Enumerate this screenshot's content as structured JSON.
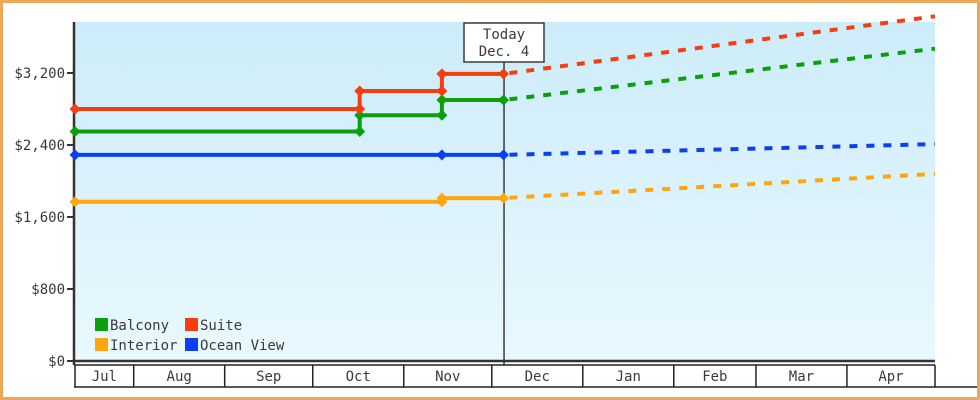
{
  "chart_data": {
    "type": "line",
    "title": "",
    "currency": "USD",
    "y_axis": {
      "ticks": [
        {
          "value": 0,
          "label": "$0"
        },
        {
          "value": 800,
          "label": "$800"
        },
        {
          "value": 1600,
          "label": "$1,600"
        },
        {
          "value": 2400,
          "label": "$2,400"
        },
        {
          "value": 3200,
          "label": "$3,200"
        }
      ],
      "ylim": [
        0,
        3780
      ]
    },
    "x_axis": {
      "months": [
        {
          "label": "Jul",
          "days": 20
        },
        {
          "label": "Aug",
          "days": 31
        },
        {
          "label": "Sep",
          "days": 30
        },
        {
          "label": "Oct",
          "days": 31
        },
        {
          "label": "Nov",
          "days": 30
        },
        {
          "label": "Dec",
          "days": 31
        },
        {
          "label": "Jan",
          "days": 31
        },
        {
          "label": "Feb",
          "days": 28
        },
        {
          "label": "Mar",
          "days": 31
        },
        {
          "label": "Apr",
          "days": 30
        }
      ],
      "timeline_days": 293
    },
    "today": {
      "t": 146,
      "line1": "Today",
      "line2": "Dec. 4"
    },
    "series": [
      {
        "name": "Balcony",
        "color": "#0aa00a",
        "solid": [
          [
            0,
            2550
          ],
          [
            97,
            2550
          ],
          [
            97,
            2730
          ],
          [
            125,
            2730
          ],
          [
            125,
            2900
          ],
          [
            146,
            2900
          ]
        ],
        "projected": [
          [
            146,
            2900
          ],
          [
            293,
            3470
          ]
        ]
      },
      {
        "name": "Suite",
        "color": "#f53d0e",
        "solid": [
          [
            0,
            2800
          ],
          [
            97,
            2800
          ],
          [
            97,
            3000
          ],
          [
            125,
            3000
          ],
          [
            125,
            3190
          ],
          [
            146,
            3190
          ]
        ],
        "projected": [
          [
            146,
            3190
          ],
          [
            293,
            3830
          ]
        ]
      },
      {
        "name": "Interior",
        "color": "#ffa60d",
        "solid": [
          [
            0,
            1770
          ],
          [
            125,
            1770
          ],
          [
            125,
            1810
          ],
          [
            146,
            1810
          ]
        ],
        "projected": [
          [
            146,
            1810
          ],
          [
            293,
            2080
          ]
        ]
      },
      {
        "name": "Ocean View",
        "color": "#0b40f0",
        "solid": [
          [
            0,
            2290
          ],
          [
            125,
            2290
          ],
          [
            146,
            2290
          ]
        ],
        "projected": [
          [
            146,
            2290
          ],
          [
            293,
            2410
          ]
        ]
      }
    ],
    "legend": {
      "position": "bottom-left",
      "order": [
        "Balcony",
        "Suite",
        "Interior",
        "Ocean View"
      ]
    }
  }
}
